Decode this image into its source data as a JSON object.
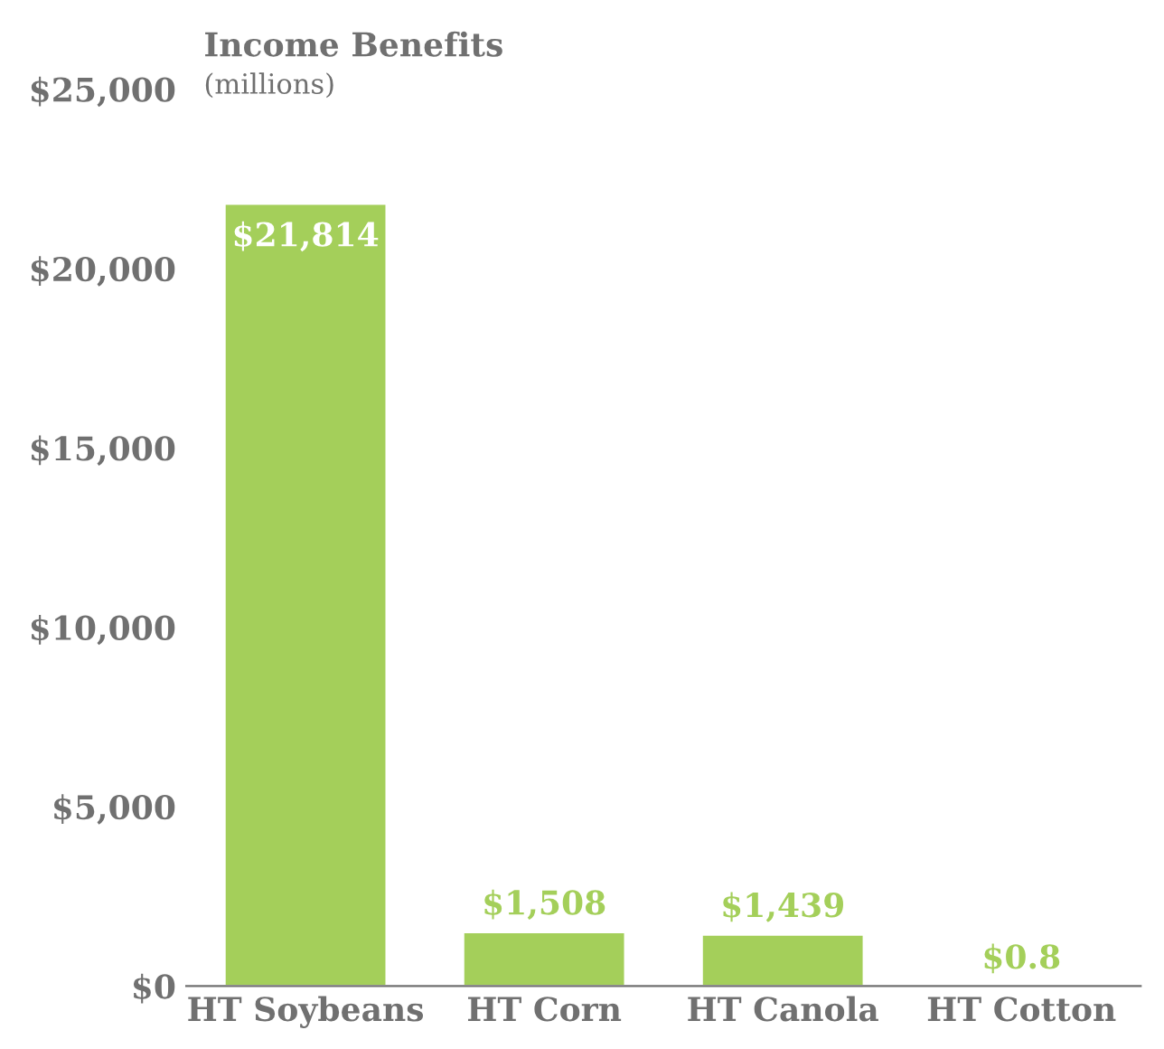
{
  "chart_data": {
    "type": "bar",
    "title": "Income Benefits",
    "subtitle": "(millions)",
    "categories": [
      "HT Soybeans",
      "HT Corn",
      "HT Canola",
      "HT Cotton"
    ],
    "values": [
      21814,
      1508,
      1439,
      0.8
    ],
    "value_labels": [
      "$21,814",
      "$1,508",
      "$1,439",
      "$0.8"
    ],
    "color": "#a4cf5a",
    "ylim": [
      0,
      25000
    ],
    "yticks": [
      {
        "value": 0,
        "label": "$0"
      },
      {
        "value": 5000,
        "label": "$5,000"
      },
      {
        "value": 10000,
        "label": "$10,000"
      },
      {
        "value": 15000,
        "label": "$15,000"
      },
      {
        "value": 20000,
        "label": "$20,000"
      },
      {
        "value": 25000,
        "label": "$25,000"
      }
    ],
    "grid": false
  }
}
